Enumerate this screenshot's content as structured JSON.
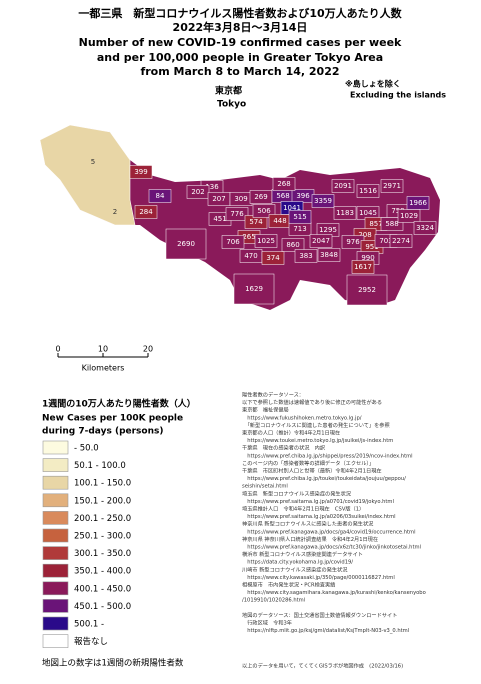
{
  "header": {
    "title_jp": "一都三県　新型コロナウイルス陽性者数および10万人あたり人数",
    "date_jp": "2022年3月8日～3月14日",
    "title_en_1": "Number of new COVID-19 confirmed cases per week",
    "title_en_2": "and per 100,000 people in Greater Tokyo Area",
    "title_en_3": "from March 8 to March 14, 2022"
  },
  "note": {
    "jp": "※島しょを除く",
    "en": "Excluding the islands"
  },
  "area": {
    "jp": "東京都",
    "en": "Tokyo"
  },
  "scale": {
    "ticks": [
      "0",
      "10",
      "20"
    ],
    "unit": "Kilometers"
  },
  "regions": [
    {
      "cases": 5,
      "color": "#e8d6a6"
    },
    {
      "cases": 2,
      "color": "#e8d6a6"
    },
    {
      "cases": 399,
      "color": "#9c2238"
    },
    {
      "cases": 136,
      "color": "#8a1a5a"
    },
    {
      "cases": 84,
      "color": "#6a1478"
    },
    {
      "cases": 202,
      "color": "#8a1a5a"
    },
    {
      "cases": 207,
      "color": "#8a1a5a"
    },
    {
      "cases": 309,
      "color": "#8a1a5a"
    },
    {
      "cases": 269,
      "color": "#8a1a5a"
    },
    {
      "cases": 568,
      "color": "#6a1478"
    },
    {
      "cases": 396,
      "color": "#6a1478"
    },
    {
      "cases": 268,
      "color": "#8a1a5a"
    },
    {
      "cases": 2091,
      "color": "#8a1a5a"
    },
    {
      "cases": 1516,
      "color": "#8a1a5a"
    },
    {
      "cases": 2971,
      "color": "#8a1a5a"
    },
    {
      "cases": 284,
      "color": "#9c2238"
    },
    {
      "cases": 451,
      "color": "#8a1a5a"
    },
    {
      "cases": 776,
      "color": "#8a1a5a"
    },
    {
      "cases": 574,
      "color": "#9c2238"
    },
    {
      "cases": 506,
      "color": "#8a1a5a"
    },
    {
      "cases": 1041,
      "color": "#2a0a8a"
    },
    {
      "cases": 3359,
      "color": "#6a1478"
    },
    {
      "cases": 1183,
      "color": "#8a1a5a"
    },
    {
      "cases": 1045,
      "color": "#8a1a5a"
    },
    {
      "cases": 857,
      "color": "#9c2238"
    },
    {
      "cases": 759,
      "color": "#8a1a5a"
    },
    {
      "cases": 1966,
      "color": "#6a1478"
    },
    {
      "cases": 448,
      "color": "#9c2238"
    },
    {
      "cases": 713,
      "color": "#8a1a5a"
    },
    {
      "cases": 515,
      "color": "#6a1478"
    },
    {
      "cases": 1295,
      "color": "#8a1a5a"
    },
    {
      "cases": 588,
      "color": "#8a1a5a"
    },
    {
      "cases": 1029,
      "color": "#8a1a5a"
    },
    {
      "cases": 2690,
      "color": "#8a1a5a"
    },
    {
      "cases": 265,
      "color": "#9c2238"
    },
    {
      "cases": 1025,
      "color": "#8a1a5a"
    },
    {
      "cases": 2047,
      "color": "#8a1a5a"
    },
    {
      "cases": 208,
      "color": "#9c2238"
    },
    {
      "cases": 976,
      "color": "#8a1a5a"
    },
    {
      "cases": 951,
      "color": "#9c2238"
    },
    {
      "cases": 703,
      "color": "#8a1a5a"
    },
    {
      "cases": 2274,
      "color": "#8a1a5a"
    },
    {
      "cases": 3324,
      "color": "#8a1a5a"
    },
    {
      "cases": 706,
      "color": "#8a1a5a"
    },
    {
      "cases": 470,
      "color": "#8a1a5a"
    },
    {
      "cases": 374,
      "color": "#9c2238"
    },
    {
      "cases": 860,
      "color": "#8a1a5a"
    },
    {
      "cases": 383,
      "color": "#8a1a5a"
    },
    {
      "cases": 3848,
      "color": "#8a1a5a"
    },
    {
      "cases": 990,
      "color": "#8a1a5a"
    },
    {
      "cases": 1617,
      "color": "#9c2238"
    },
    {
      "cases": 1629,
      "color": "#8a1a5a"
    },
    {
      "cases": 2952,
      "color": "#8a1a5a"
    }
  ],
  "legend": {
    "title_jp": "1週間の10万人あたり陽性者数（人）",
    "title_en_1": "New Cases per 100K people",
    "title_en_2": "during 7-days (persons)",
    "items": [
      {
        "label": "- 50.0",
        "color": "#fdfbe0"
      },
      {
        "label": "50.1 - 100.0",
        "color": "#f3ecc4"
      },
      {
        "label": "100.1 - 150.0",
        "color": "#e8d6a6"
      },
      {
        "label": "150.1 - 200.0",
        "color": "#e2b07c"
      },
      {
        "label": "200.1 - 250.0",
        "color": "#d98a5c"
      },
      {
        "label": "250.1 - 300.0",
        "color": "#c6623e"
      },
      {
        "label": "300.1 - 350.0",
        "color": "#b03a3a"
      },
      {
        "label": "350.1 - 400.0",
        "color": "#9c2238"
      },
      {
        "label": "400.1 - 450.0",
        "color": "#8a1a5a"
      },
      {
        "label": "450.1 - 500.0",
        "color": "#6a1478"
      },
      {
        "label": "500.1 -",
        "color": "#2a0a8a"
      },
      {
        "label": "報告なし",
        "color": "#ffffff"
      }
    ]
  },
  "footer": "地図上の数字は1週間の新規陽性者数",
  "sources": [
    "陽性者数のデータソース：",
    "以下で参照した数値は速報値であり後に修正の可能性がある",
    "東京都　福祉保健局",
    "　https://www.fukushihoken.metro.tokyo.lg.jp/",
    "　「新型コロナウイルスに関連した患者の発生について」を参照",
    "東京都の人口（推計）令和4年2月1日現在",
    "　https://www.toukei.metro.tokyo.lg.jp/jsuikei/js-index.htm",
    "千葉県　現在の感染者の状況　内訳",
    "　https://www.pref.chiba.lg.jp/shippei/press/2019/ncov-index.html",
    "このページ内の「感染者数等の詳細データ（エクセル）」",
    "千葉県　市区町村別人口と世帯（最新）令和4年2月1日現在",
    "　https://www.pref.chiba.lg.jp/toukei/toukeidata/joujuu/geppou/",
    "seishin/setai.html",
    "埼玉県　新型コロナウイルス感染症の発生状況",
    "　https://www.pref.saitama.lg.jp/a0701/covid19/jokyo.html",
    "埼玉県推計人口　令和4年2月1日現在　CSV版（1）",
    "　https://www.pref.saitama.lg.jp/a0206/03suikei/index.html",
    "神奈川県 新型コロナウイルスに感染した患者の発生状況",
    "　https://www.pref.kanagawa.jp/docs/ga4/covid19/occurrence.html",
    "神奈川県 神奈川県人口統計調査結果　令和4年2月1日現在",
    "　https://www.pref.kanagawa.jp/docs/x6z/tc30/jinko/jinkotosetai.html",
    "横浜市 新型コロナウイルス感染症関連データサイト",
    "　https://data.city.yokohama.lg.jp/covid19/",
    "川崎市 新型コロナウイルス感染症の発生状況",
    "　https://www.city.kawasaki.jp/350/page/0000116827.html",
    "相模原市　市内発生状況・PCR検査実績",
    "　https://www.city.sagamihara.kanagawa.jp/kurashi/kenko/kansenyobo",
    "/1019910/1020286.html",
    "",
    "地図のデータソース：国土交通省国土数値情報ダウンロードサイト",
    "　行政区域　令和3年",
    "　https://nlftp.mlit.go.jp/ksj/gml/datalist/KsjTmplt-N03-v3_0.html"
  ],
  "credit": "以上のデータを用いて，てくてくGISラボが地図作成　(2022/03/16)"
}
